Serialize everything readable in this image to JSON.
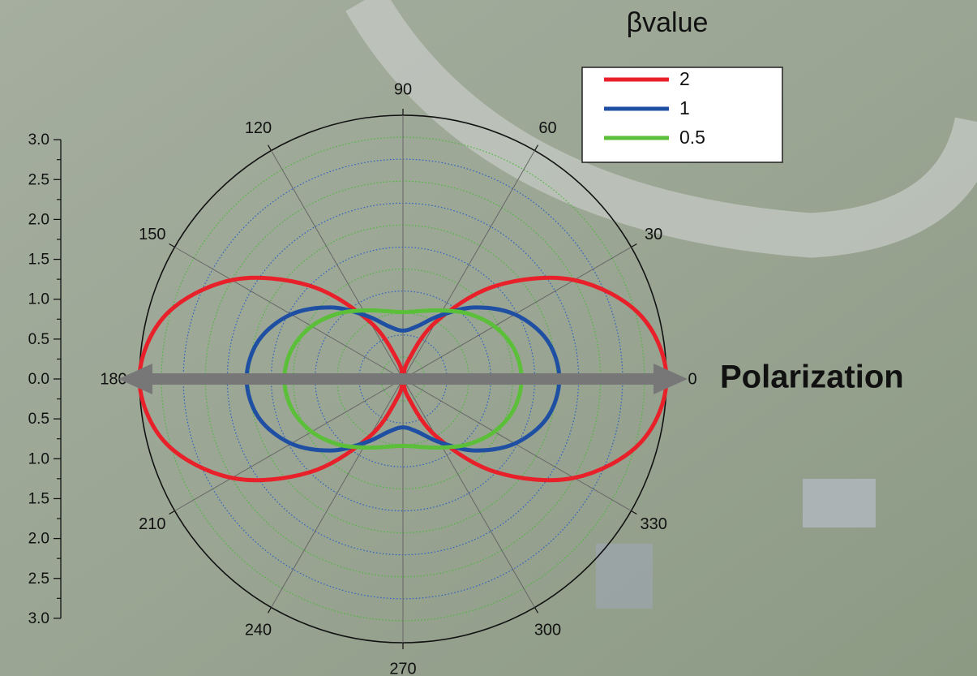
{
  "chart_data": {
    "type": "polar",
    "legend_title": "βvalue",
    "annotation": "Polarization",
    "theta": [
      0,
      15,
      30,
      45,
      60,
      75,
      90,
      105,
      120,
      135,
      150,
      165,
      180,
      195,
      210,
      225,
      240,
      255,
      270,
      285,
      300,
      315,
      330,
      345
    ],
    "series": [
      {
        "name": "2",
        "color": "#e8202a",
        "values": [
          3,
          2.8,
          2.25,
          1.5,
          0.75,
          0.2,
          0,
          0.2,
          0.75,
          1.5,
          2.25,
          2.8,
          3,
          2.8,
          2.25,
          1.5,
          0.75,
          0.2,
          0,
          0.2,
          0.75,
          1.5,
          2.25,
          2.8
        ]
      },
      {
        "name": "1",
        "color": "#1f4fa3",
        "values": [
          1.78,
          1.7,
          1.47,
          1.15,
          0.83,
          0.62,
          0.55,
          0.62,
          0.83,
          1.15,
          1.47,
          1.7,
          1.78,
          1.7,
          1.47,
          1.15,
          0.83,
          0.62,
          0.55,
          0.62,
          0.83,
          1.15,
          1.47,
          1.7
        ]
      },
      {
        "name": "0.5",
        "color": "#5cbf3a",
        "values": [
          1.35,
          1.31,
          1.2,
          1.05,
          0.9,
          0.8,
          0.76,
          0.8,
          0.9,
          1.05,
          1.2,
          1.31,
          1.35,
          1.31,
          1.2,
          1.05,
          0.9,
          0.8,
          0.76,
          0.8,
          0.9,
          1.05,
          1.2,
          1.31
        ]
      }
    ],
    "rlim": [
      0,
      3
    ],
    "rticks": [
      {
        "value": 0,
        "label": "0.0"
      },
      {
        "value": 0.5,
        "label": "0.5"
      },
      {
        "value": 1,
        "label": "1.0"
      },
      {
        "value": 1.5,
        "label": "1.5"
      },
      {
        "value": 2,
        "label": "2.0"
      },
      {
        "value": 2.5,
        "label": "2.5"
      },
      {
        "value": 3,
        "label": "3.0"
      }
    ],
    "rminor_ticks": [
      0.25,
      0.75,
      1.25,
      1.75,
      2.25,
      2.75
    ],
    "angular_ticks": [
      0,
      30,
      60,
      90,
      120,
      150,
      180,
      210,
      240,
      270,
      300,
      330
    ]
  }
}
